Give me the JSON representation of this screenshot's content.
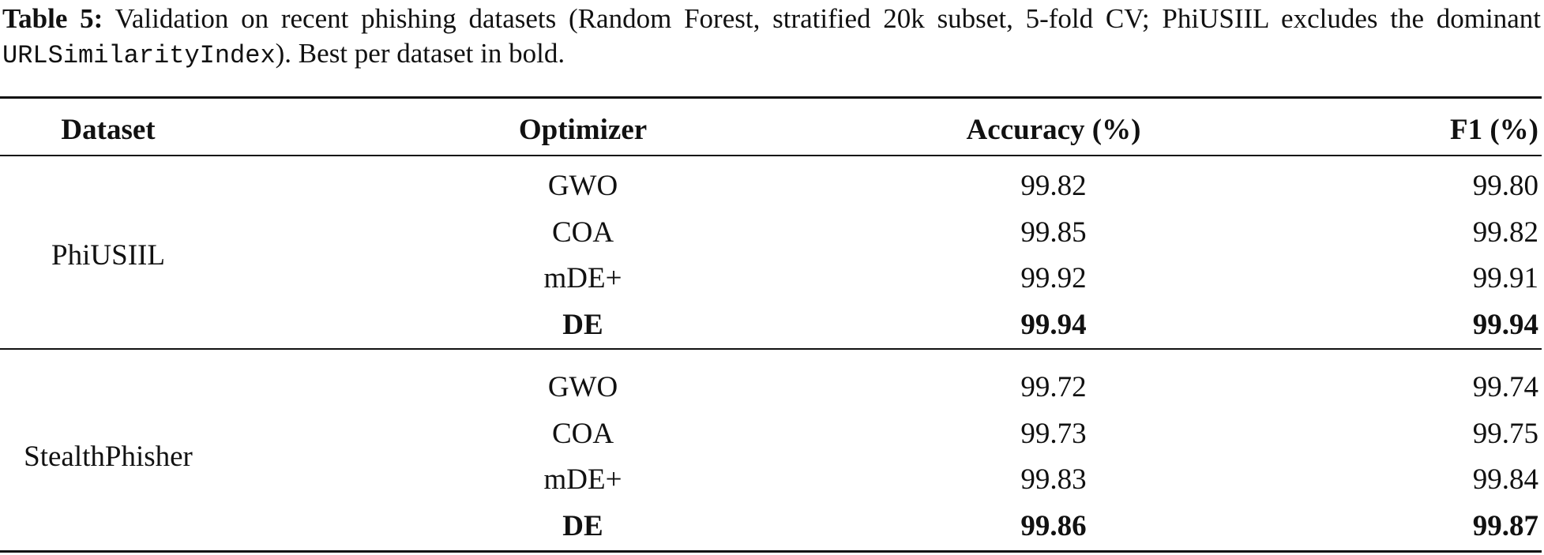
{
  "caption": {
    "label": "Table 5:",
    "text_before": "Validation on recent phishing datasets (Random Forest, stratified 20k subset, 5-fold CV; PhiUSIIL excludes the dominant",
    "code": "URLSimilarityIndex",
    "text_after": "). Best per dataset in bold."
  },
  "table": {
    "header": [
      "Dataset",
      "Optimizer",
      "Accuracy (%)",
      "F1 (%)"
    ],
    "groups": [
      {
        "dataset": "PhiUSIIL",
        "rows": [
          {
            "optimizer": "GWO",
            "accuracy": "99.82",
            "f1": "99.80"
          },
          {
            "optimizer": "COA",
            "accuracy": "99.85",
            "f1": "99.82"
          },
          {
            "optimizer": "mDE+",
            "accuracy": "99.92",
            "f1": "99.91"
          },
          {
            "optimizer": "DE",
            "accuracy": "99.94",
            "f1": "99.94",
            "best": true
          }
        ]
      },
      {
        "dataset": "StealthPhisher",
        "rows": [
          {
            "optimizer": "GWO",
            "accuracy": "99.72",
            "f1": "99.74"
          },
          {
            "optimizer": "COA",
            "accuracy": "99.73",
            "f1": "99.75"
          },
          {
            "optimizer": "mDE+",
            "accuracy": "99.83",
            "f1": "99.84"
          },
          {
            "optimizer": "DE",
            "accuracy": "99.86",
            "f1": "99.87",
            "best": true
          }
        ]
      }
    ]
  }
}
